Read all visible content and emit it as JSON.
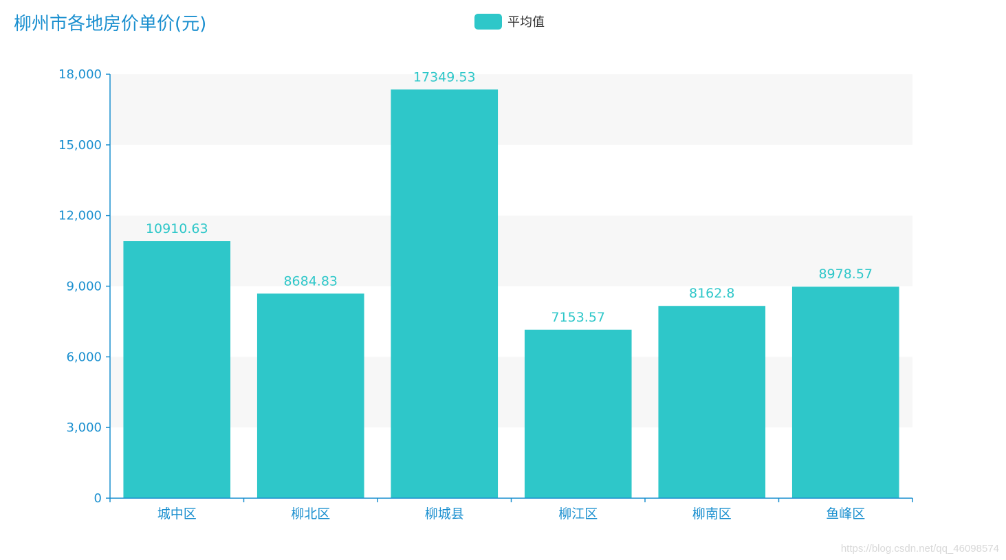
{
  "chart_data": {
    "type": "bar",
    "title": "柳州市各地房价单价(元)",
    "categories": [
      "城中区",
      "柳北区",
      "柳城县",
      "柳江区",
      "柳南区",
      "鱼峰区"
    ],
    "series": [
      {
        "name": "平均值",
        "values": [
          10910.63,
          8684.83,
          17349.53,
          7153.57,
          8162.8,
          8978.57
        ],
        "labels": [
          "10910.63",
          "8684.83",
          "17349.53",
          "7153.57",
          "8162.8",
          "8978.57"
        ],
        "color": "#2ec7c9"
      }
    ],
    "ylim": [
      0,
      18000
    ],
    "yticks": [
      0,
      3000,
      6000,
      9000,
      12000,
      15000,
      18000
    ],
    "ytick_labels": [
      "0",
      "3,000",
      "6,000",
      "9,000",
      "12,000",
      "15,000",
      "18,000"
    ],
    "xlabel": "",
    "ylabel": "",
    "legend_position": "top-center",
    "grid": "alternating-bands",
    "axis_color": "#1a8fcf",
    "band_color": "#f7f7f7"
  },
  "watermark": "https://blog.csdn.net/qq_46098574"
}
